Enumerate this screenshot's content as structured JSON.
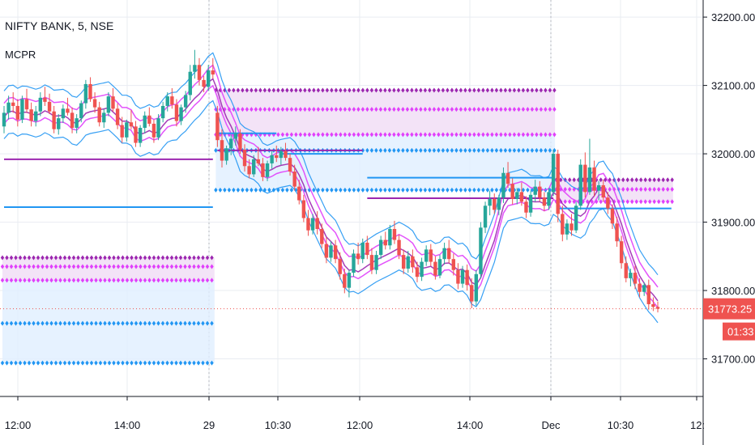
{
  "header": {
    "title": "NIFTY BANK, 5, NSE",
    "indicator": "MCPR"
  },
  "chart_data": {
    "type": "candlestick",
    "ylim": [
      31645,
      32225
    ],
    "y_ticks": [
      32200,
      32100,
      32000,
      31900,
      31800,
      31700
    ],
    "y_tick_labels": [
      "32200.00",
      "32100.00",
      "32000.00",
      "31900.00",
      "31800.00",
      "31700.00"
    ],
    "x_tick_labels": [
      "12:00",
      "14:00",
      "29",
      "10:30",
      "12:00",
      "14:00",
      "Dec",
      "10:30",
      "12:"
    ],
    "last_price": {
      "label": "31773.25",
      "value": 31773.25,
      "color": "#ef5350"
    },
    "countdown": "01:33",
    "sessions": [
      {
        "bars": [
          0,
          46
        ],
        "cpr_top": 31848,
        "cpr_bottom": 31815,
        "bands": [
          31848,
          31835,
          31815,
          31752,
          31694
        ]
      },
      {
        "bars": [
          47,
          121
        ],
        "cpr_top": 32093,
        "cpr_bottom": 32028,
        "bands": [
          32093,
          32065,
          32028,
          32005,
          31947
        ]
      },
      {
        "bars": [
          122,
          147
        ],
        "cpr_top": 31962,
        "cpr_bottom": 31930,
        "bands": [
          31962,
          31948,
          31930
        ]
      }
    ],
    "candles": [
      [
        32040,
        32070,
        32030,
        32060
      ],
      [
        32060,
        32085,
        32050,
        32075
      ],
      [
        32075,
        32090,
        32060,
        32070
      ],
      [
        32070,
        32080,
        32040,
        32050
      ],
      [
        32050,
        32085,
        32045,
        32080
      ],
      [
        32080,
        32095,
        32060,
        32065
      ],
      [
        32065,
        32075,
        32040,
        32048
      ],
      [
        32048,
        32070,
        32040,
        32062
      ],
      [
        32062,
        32090,
        32055,
        32082
      ],
      [
        32082,
        32098,
        32070,
        32076
      ],
      [
        32076,
        32088,
        32058,
        32062
      ],
      [
        32062,
        32070,
        32030,
        32036
      ],
      [
        32036,
        32058,
        32028,
        32052
      ],
      [
        32052,
        32072,
        32045,
        32066
      ],
      [
        32066,
        32082,
        32056,
        32060
      ],
      [
        32060,
        32068,
        32030,
        32038
      ],
      [
        32038,
        32058,
        32030,
        32052
      ],
      [
        32052,
        32078,
        32046,
        32074
      ],
      [
        32074,
        32108,
        32066,
        32102
      ],
      [
        32102,
        32112,
        32076,
        32080
      ],
      [
        32080,
        32090,
        32060,
        32068
      ],
      [
        32068,
        32076,
        32040,
        32046
      ],
      [
        32046,
        32066,
        32038,
        32060
      ],
      [
        32060,
        32090,
        32055,
        32084
      ],
      [
        32084,
        32096,
        32062,
        32066
      ],
      [
        32066,
        32074,
        32036,
        32042
      ],
      [
        32042,
        32054,
        32016,
        32024
      ],
      [
        32024,
        32050,
        32018,
        32046
      ],
      [
        32046,
        32064,
        32036,
        32040
      ],
      [
        32040,
        32048,
        32010,
        32016
      ],
      [
        32016,
        32042,
        32010,
        32038
      ],
      [
        32038,
        32062,
        32030,
        32056
      ],
      [
        32056,
        32068,
        32040,
        32044
      ],
      [
        32044,
        32050,
        32016,
        32024
      ],
      [
        32024,
        32058,
        32020,
        32052
      ],
      [
        32052,
        32076,
        32046,
        32070
      ],
      [
        32070,
        32090,
        32062,
        32084
      ],
      [
        32084,
        32096,
        32066,
        32072
      ],
      [
        32072,
        32080,
        32040,
        32048
      ],
      [
        32048,
        32072,
        32042,
        32068
      ],
      [
        32068,
        32092,
        32060,
        32086
      ],
      [
        32086,
        32130,
        32078,
        32120
      ],
      [
        32120,
        32152,
        32110,
        32130
      ],
      [
        32130,
        32140,
        32100,
        32108
      ],
      [
        32108,
        32114,
        32090,
        32098
      ],
      [
        32098,
        32130,
        32092,
        32122
      ],
      [
        32122,
        32140,
        32110,
        32116
      ],
      [
        32060,
        32070,
        32010,
        32020
      ],
      [
        32020,
        32036,
        31980,
        31990
      ],
      [
        31990,
        32012,
        31984,
        32008
      ],
      [
        32008,
        32028,
        31998,
        32022
      ],
      [
        32022,
        32040,
        32012,
        32030
      ],
      [
        32030,
        32036,
        32000,
        32006
      ],
      [
        32006,
        32014,
        31974,
        31982
      ],
      [
        31982,
        31992,
        31964,
        31970
      ],
      [
        31970,
        31998,
        31966,
        31992
      ],
      [
        31992,
        32010,
        31982,
        31986
      ],
      [
        31986,
        31994,
        31960,
        31966
      ],
      [
        31966,
        31990,
        31960,
        31986
      ],
      [
        31986,
        32004,
        31978,
        31998
      ],
      [
        31998,
        32012,
        31988,
        31994
      ],
      [
        31994,
        32010,
        31984,
        32004
      ],
      [
        32004,
        32016,
        31990,
        31994
      ],
      [
        31994,
        32000,
        31968,
        31974
      ],
      [
        31974,
        31984,
        31946,
        31952
      ],
      [
        31952,
        31962,
        31926,
        31932
      ],
      [
        31932,
        31940,
        31900,
        31906
      ],
      [
        31906,
        31918,
        31880,
        31888
      ],
      [
        31888,
        31912,
        31882,
        31906
      ],
      [
        31906,
        31916,
        31882,
        31890
      ],
      [
        31890,
        31898,
        31862,
        31868
      ],
      [
        31868,
        31878,
        31840,
        31848
      ],
      [
        31848,
        31872,
        31842,
        31866
      ],
      [
        31866,
        31874,
        31840,
        31846
      ],
      [
        31846,
        31856,
        31816,
        31824
      ],
      [
        31824,
        31832,
        31796,
        31804
      ],
      [
        31804,
        31830,
        31790,
        31826
      ],
      [
        31826,
        31860,
        31820,
        31854
      ],
      [
        31854,
        31870,
        31838,
        31846
      ],
      [
        31846,
        31876,
        31840,
        31870
      ],
      [
        31870,
        31880,
        31846,
        31852
      ],
      [
        31852,
        31862,
        31824,
        31830
      ],
      [
        31830,
        31858,
        31824,
        31852
      ],
      [
        31852,
        31880,
        31846,
        31874
      ],
      [
        31874,
        31886,
        31860,
        31866
      ],
      [
        31866,
        31896,
        31860,
        31890
      ],
      [
        31890,
        31902,
        31868,
        31874
      ],
      [
        31874,
        31882,
        31846,
        31852
      ],
      [
        31852,
        31860,
        31824,
        31832
      ],
      [
        31832,
        31858,
        31826,
        31850
      ],
      [
        31850,
        31860,
        31826,
        31834
      ],
      [
        31834,
        31842,
        31812,
        31820
      ],
      [
        31820,
        31848,
        31814,
        31842
      ],
      [
        31842,
        31866,
        31836,
        31860
      ],
      [
        31860,
        31868,
        31836,
        31842
      ],
      [
        31842,
        31850,
        31816,
        31822
      ],
      [
        31822,
        31852,
        31818,
        31846
      ],
      [
        31846,
        31870,
        31838,
        31862
      ],
      [
        31862,
        31874,
        31840,
        31846
      ],
      [
        31846,
        31854,
        31822,
        31830
      ],
      [
        31830,
        31840,
        31802,
        31810
      ],
      [
        31810,
        31836,
        31804,
        31830
      ],
      [
        31830,
        31838,
        31800,
        31808
      ],
      [
        31808,
        31818,
        31774,
        31784
      ],
      [
        31784,
        31830,
        31778,
        31824
      ],
      [
        31824,
        31900,
        31818,
        31892
      ],
      [
        31892,
        31930,
        31884,
        31924
      ],
      [
        31924,
        31946,
        31910,
        31934
      ],
      [
        31934,
        31942,
        31912,
        31918
      ],
      [
        31918,
        31940,
        31910,
        31936
      ],
      [
        31936,
        31980,
        31928,
        31972
      ],
      [
        31972,
        31988,
        31950,
        31956
      ],
      [
        31956,
        31964,
        31926,
        31934
      ],
      [
        31934,
        31950,
        31926,
        31944
      ],
      [
        31944,
        31958,
        31924,
        31930
      ],
      [
        31930,
        31938,
        31906,
        31914
      ],
      [
        31914,
        31946,
        31908,
        31940
      ],
      [
        31940,
        31962,
        31930,
        31952
      ],
      [
        31952,
        31960,
        31930,
        31936
      ],
      [
        31936,
        31944,
        31916,
        31924
      ],
      [
        31924,
        31950,
        31918,
        31944
      ],
      [
        31944,
        32006,
        31938,
        32000
      ],
      [
        32000,
        32006,
        31900,
        31912
      ],
      [
        31912,
        31924,
        31872,
        31882
      ],
      [
        31882,
        31904,
        31874,
        31898
      ],
      [
        31898,
        31912,
        31880,
        31888
      ],
      [
        31888,
        31930,
        31884,
        31924
      ],
      [
        31924,
        31992,
        31918,
        31984
      ],
      [
        31984,
        32002,
        31936,
        31944
      ],
      [
        31944,
        32022,
        31940,
        31980
      ],
      [
        31980,
        31990,
        31938,
        31946
      ],
      [
        31946,
        31960,
        31932,
        31954
      ],
      [
        31954,
        31962,
        31930,
        31936
      ],
      [
        31936,
        31944,
        31912,
        31920
      ],
      [
        31920,
        31926,
        31890,
        31898
      ],
      [
        31898,
        31908,
        31864,
        31872
      ],
      [
        31872,
        31880,
        31832,
        31840
      ],
      [
        31840,
        31850,
        31812,
        31818
      ],
      [
        31818,
        31832,
        31806,
        31826
      ],
      [
        31826,
        31836,
        31802,
        31810
      ],
      [
        31810,
        31818,
        31790,
        31798
      ],
      [
        31798,
        31812,
        31792,
        31808
      ],
      [
        31808,
        31816,
        31772,
        31780
      ],
      [
        31780,
        31790,
        31770,
        31776
      ],
      [
        31776,
        31784,
        31768,
        31773.25
      ]
    ]
  },
  "colors": {
    "up": "#26a69a",
    "down": "#ef5350",
    "grid": "#e9ecf2",
    "axis": "#131722",
    "cpr_fill": "#f3e3f7",
    "cpr_fill2": "#e0efff",
    "purple": "#9c27b0",
    "magenta": "#e040fb",
    "blue": "#2196f3"
  }
}
